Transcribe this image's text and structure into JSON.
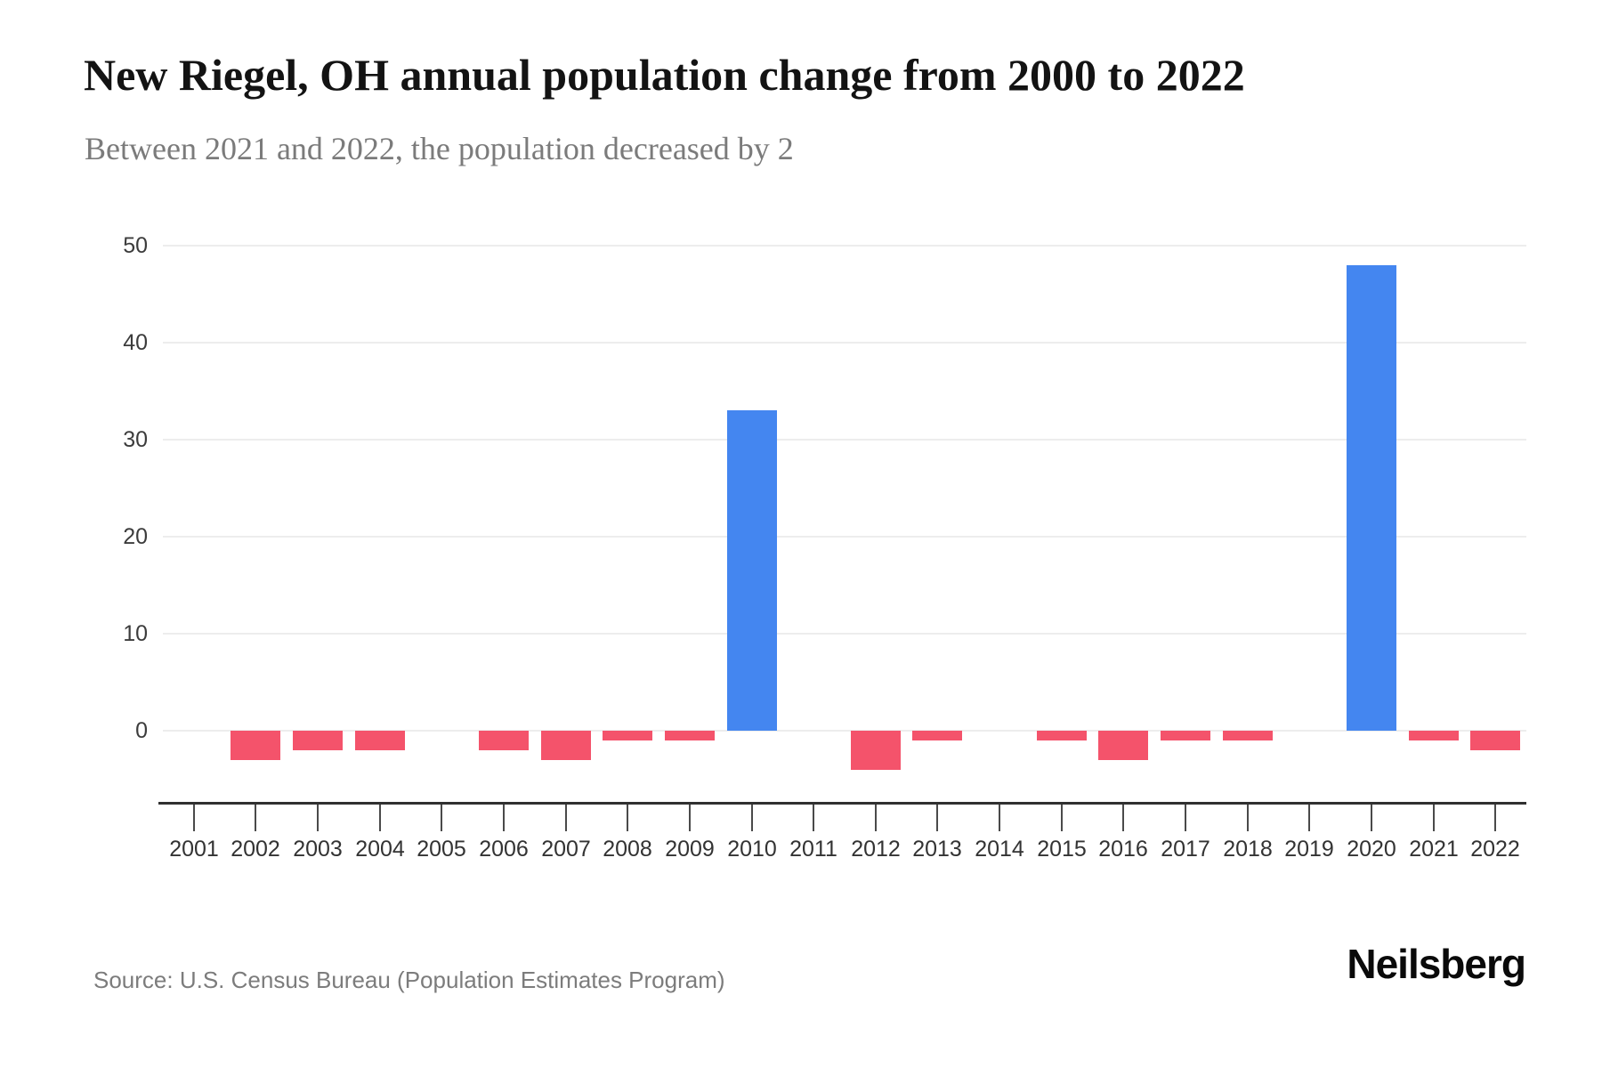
{
  "header": {
    "title": "New Riegel, OH annual population change from 2000 to 2022",
    "subtitle": "Between 2021 and 2022, the population decreased by 2"
  },
  "footer": {
    "source": "Source: U.S. Census Bureau (Population Estimates Program)",
    "brand": "Neilsberg"
  },
  "chart_data": {
    "type": "bar",
    "title": "New Riegel, OH annual population change from 2000 to 2022",
    "subtitle": "Between 2021 and 2022, the population decreased by 2",
    "categories": [
      "2001",
      "2002",
      "2003",
      "2004",
      "2005",
      "2006",
      "2007",
      "2008",
      "2009",
      "2010",
      "2011",
      "2012",
      "2013",
      "2014",
      "2015",
      "2016",
      "2017",
      "2018",
      "2019",
      "2020",
      "2021",
      "2022"
    ],
    "values": [
      0,
      -3,
      -2,
      -2,
      0,
      -2,
      -3,
      -1,
      -1,
      33,
      0,
      -4,
      -1,
      0,
      -1,
      -3,
      -1,
      -1,
      0,
      48,
      -1,
      -2
    ],
    "yticks": [
      0,
      10,
      20,
      30,
      40,
      50
    ],
    "ylim": [
      -5,
      50
    ],
    "xlabel": "",
    "ylabel": "",
    "grid": "horizontal",
    "legend": "none",
    "colors": {
      "positive": "#4486f0",
      "negative": "#f4536b"
    }
  }
}
